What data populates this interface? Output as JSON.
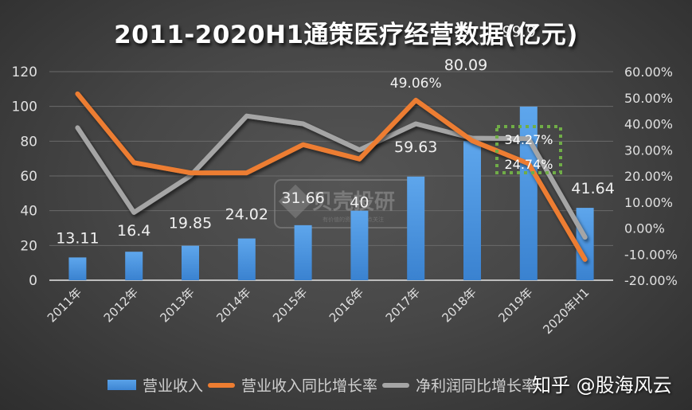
{
  "title": "2011-2020H1通策医疗经营数据(亿元)",
  "legend": {
    "items": [
      {
        "label": "营业收入",
        "type": "bar",
        "color": "#4a90d9"
      },
      {
        "label": "营业收入同比增长率",
        "type": "line",
        "color": "#ed7d31"
      },
      {
        "label": "净利润同比增长率",
        "type": "line",
        "color": "#a5a5a5"
      }
    ]
  },
  "watermarks": {
    "center_logo": "贝壳投研",
    "center_tagline": "有价值的资讯入群点关注",
    "bottom_right": "知乎 @股海风云"
  },
  "annotation_box": {
    "color": "#70ad47",
    "style": "dotted",
    "labels": [
      "34.27%",
      "24.74%"
    ]
  },
  "chart_data": {
    "type": "bar+line",
    "title": "2011-2020H1通策医疗经营数据(亿元)",
    "categories": [
      "2011年",
      "2012年",
      "2013年",
      "2014年",
      "2015年",
      "2016年",
      "2017年",
      "2018年",
      "2019年",
      "2020年H1"
    ],
    "series": [
      {
        "name": "营业收入",
        "type": "bar",
        "axis": "left",
        "color": "#4a90d9",
        "values": [
          13.11,
          16.4,
          19.85,
          24.02,
          31.66,
          40,
          59.63,
          80.09,
          99.9,
          41.64
        ],
        "labels": [
          "13.11",
          "16.4",
          "19.85",
          "24.02",
          "31.66",
          "40",
          "59.63",
          "80.09",
          "99.9",
          "41.64"
        ]
      },
      {
        "name": "营业收入同比增长率",
        "type": "line",
        "axis": "right",
        "color": "#ed7d31",
        "values": [
          51.5,
          25.1,
          21.2,
          21.2,
          32.0,
          26.5,
          49.06,
          33.5,
          24.74,
          -12.0
        ],
        "labeled_points": {
          "2017年": "49.06%",
          "2019年": "24.74%"
        }
      },
      {
        "name": "净利润同比增长率",
        "type": "line",
        "axis": "right",
        "color": "#a5a5a5",
        "values": [
          38.5,
          6.0,
          20.0,
          43.0,
          40.0,
          30.0,
          40.0,
          34.5,
          34.27,
          -3.5
        ],
        "labeled_points": {
          "2019年": "34.27%"
        }
      }
    ],
    "left_axis": {
      "ylim": [
        0,
        120
      ],
      "ticks": [
        "0",
        "20",
        "40",
        "60",
        "80",
        "100",
        "120"
      ]
    },
    "right_axis": {
      "ylim": [
        -20,
        60
      ],
      "ticks": [
        "-20.00%",
        "-10.00%",
        "0.00%",
        "10.00%",
        "20.00%",
        "30.00%",
        "40.00%",
        "50.00%",
        "60.00%"
      ]
    },
    "xlabel": "",
    "ylabel": "",
    "grid": true,
    "legend_position": "bottom"
  }
}
